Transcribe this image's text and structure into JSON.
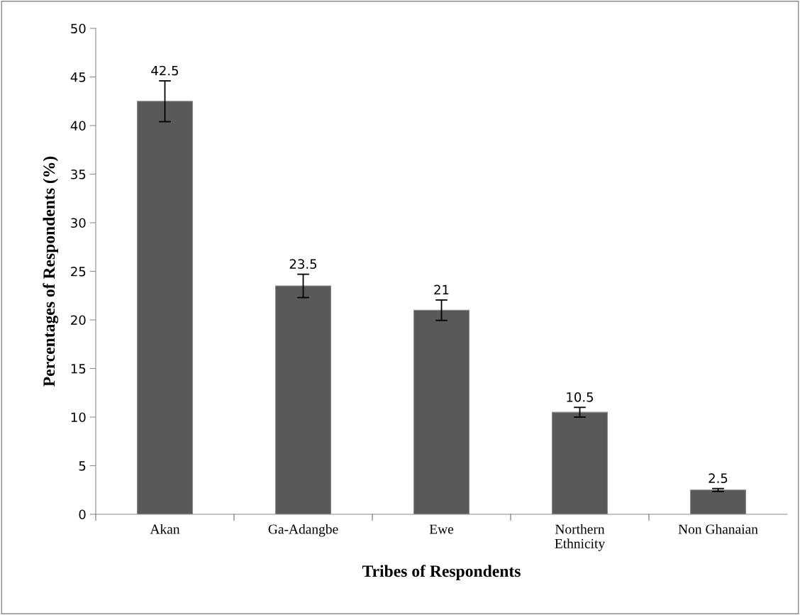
{
  "chart_data": {
    "type": "bar",
    "xlabel": "Tribes of Respondents",
    "ylabel": "Percentages of Respondents (%)",
    "categories": [
      "Akan",
      "Ga-Adangbe",
      "Ewe",
      "Northern\nEthnicity",
      "Non Ghanaian"
    ],
    "values": [
      42.5,
      23.5,
      21,
      10.5,
      2.5
    ],
    "errors": [
      2.1,
      1.2,
      1.05,
      0.5,
      0.15
    ],
    "color": "#595959",
    "ylim": [
      0,
      50
    ],
    "yticks": [
      0,
      5,
      10,
      15,
      20,
      25,
      30,
      35,
      40,
      45,
      50
    ],
    "data_labels": true,
    "grid": false,
    "legend": false
  }
}
